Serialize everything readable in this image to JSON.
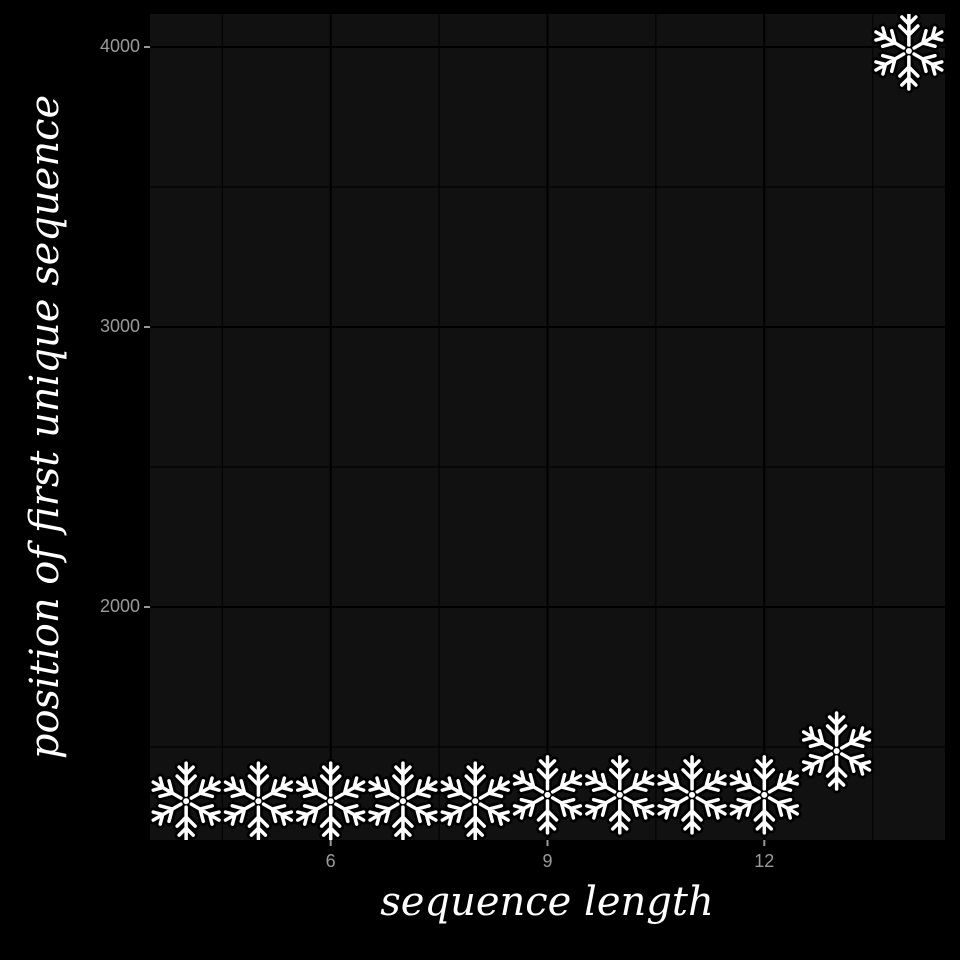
{
  "chart_data": {
    "type": "scatter",
    "x_label": "sequence length",
    "y_label": "position of first unique sequence",
    "x": [
      4,
      5,
      6,
      7,
      8,
      9,
      10,
      11,
      12,
      13,
      14
    ],
    "values": [
      1307,
      1307,
      1307,
      1307,
      1307,
      1329,
      1329,
      1329,
      1329,
      1486,
      3986
    ],
    "color": "#ffffff",
    "xlim": [
      3.5,
      14.5
    ],
    "xticks": [
      6,
      9,
      12
    ],
    "xticks_minor": [
      4.5,
      7.5,
      10.5,
      13.5
    ],
    "ylim": [
      1168,
      4118
    ],
    "yticks": [
      2000,
      3000,
      4000
    ],
    "yticks_minor": [
      1500,
      2500,
      3500
    ],
    "grid": true
  }
}
